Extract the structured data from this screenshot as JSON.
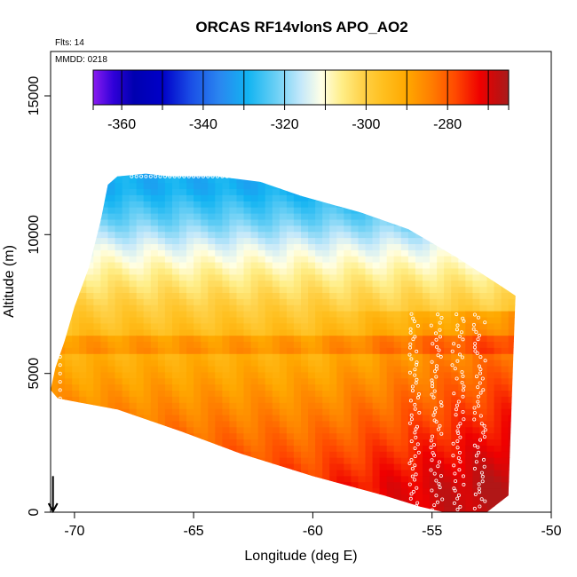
{
  "chart_data": {
    "type": "heatmap",
    "title": "ORCAS RF14vlonS APO_AO2",
    "xlabel": "Longitude (deg E)",
    "ylabel": "Altitude (m)",
    "xlim": [
      -71,
      -50
    ],
    "ylim": [
      0,
      16600
    ],
    "x_ticks": [
      -70,
      -65,
      -60,
      -55,
      -50
    ],
    "x_tick_labels": [
      "-70",
      "-65",
      "-60",
      "-55",
      "-50"
    ],
    "y_ticks": [
      0,
      5000,
      10000,
      15000
    ],
    "y_tick_labels": [
      "0",
      "5000",
      "10000",
      "15000"
    ],
    "notes": {
      "flights": "Flts: 14",
      "date": "MMDD: 0218"
    },
    "colorbar": {
      "min": -367,
      "max": -265,
      "ticks": [
        -360,
        -340,
        -320,
        -300,
        -280
      ],
      "tick_labels": [
        "-360",
        "-340",
        "-320",
        "-300",
        "-280"
      ],
      "segment_edges": [
        -367,
        -360,
        -350,
        -340,
        -330,
        -320,
        -310,
        -300,
        -290,
        -280,
        -270,
        -265
      ],
      "color_stops": [
        [
          -367,
          "#8a1cf0"
        ],
        [
          -362,
          "#2f00d8"
        ],
        [
          -357,
          "#0000b0"
        ],
        [
          -350,
          "#0000c8"
        ],
        [
          -343,
          "#1a4ee6"
        ],
        [
          -336,
          "#2a86f0"
        ],
        [
          -329,
          "#12b4f2"
        ],
        [
          -322,
          "#6cd0f5"
        ],
        [
          -316,
          "#c4e8fa"
        ],
        [
          -311,
          "#ffffe6"
        ],
        [
          -306,
          "#ffee88"
        ],
        [
          -301,
          "#ffd24a"
        ],
        [
          -296,
          "#ffc020"
        ],
        [
          -290,
          "#ffa800"
        ],
        [
          -284,
          "#ff7e00"
        ],
        [
          -278,
          "#ff4800"
        ],
        [
          -272,
          "#ef0000"
        ],
        [
          -268,
          "#c40e0e"
        ],
        [
          -265,
          "#a81c1c"
        ]
      ]
    },
    "sample_altitude_bands": [
      {
        "alt_min": 0,
        "alt_max": 2000,
        "value": -276
      },
      {
        "alt_min": 2000,
        "alt_max": 4000,
        "value": -283
      },
      {
        "alt_min": 4000,
        "alt_max": 6000,
        "value": -290
      },
      {
        "alt_min": 6000,
        "alt_max": 7000,
        "value": -295
      },
      {
        "alt_min": 7000,
        "alt_max": 8000,
        "value": -300
      },
      {
        "alt_min": 8000,
        "alt_max": 9000,
        "value": -306
      },
      {
        "alt_min": 9000,
        "alt_max": 10000,
        "value": -313
      },
      {
        "alt_min": 10000,
        "alt_max": 11000,
        "value": -322
      },
      {
        "alt_min": 11000,
        "alt_max": 12300,
        "value": -330
      }
    ],
    "data_domain_outline_lonalt": [
      [
        -70.7,
        4100
      ],
      [
        -70.1,
        4000
      ],
      [
        -68.2,
        3700
      ],
      [
        -65.5,
        2900
      ],
      [
        -63.0,
        2100
      ],
      [
        -60.0,
        1300
      ],
      [
        -57.0,
        600
      ],
      [
        -55.5,
        200
      ],
      [
        -54.5,
        0
      ],
      [
        -52.7,
        0
      ],
      [
        -51.8,
        600
      ],
      [
        -51.5,
        7800
      ],
      [
        -52.2,
        8200
      ],
      [
        -54.0,
        9200
      ],
      [
        -56.0,
        10200
      ],
      [
        -58.0,
        10800
      ],
      [
        -60.5,
        11400
      ],
      [
        -62.2,
        11900
      ],
      [
        -64.0,
        12100
      ],
      [
        -66.0,
        12100
      ],
      [
        -67.0,
        12200
      ],
      [
        -68.2,
        12100
      ],
      [
        -68.6,
        11800
      ],
      [
        -68.9,
        10500
      ],
      [
        -69.4,
        8800
      ],
      [
        -70.0,
        7400
      ],
      [
        -70.4,
        6200
      ],
      [
        -70.8,
        5200
      ],
      [
        -71.0,
        4400
      ]
    ],
    "flight_track_lon_center": -54.5,
    "arrow_longitude": -70.9
  }
}
